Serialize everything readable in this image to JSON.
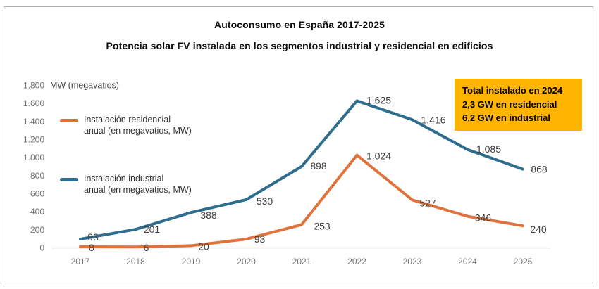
{
  "header": {
    "title1": "Autoconsumo en España 2017-2025",
    "title2": "Potencia solar FV instalada en los segmentos industrial y residencial en edificios"
  },
  "legend": {
    "residential": {
      "line1": "Instalación residencial",
      "line2": "anual (en megavatios, MW)",
      "color": "#e0733c"
    },
    "industrial": {
      "line1": "Instalación industrial",
      "line2": "anual (en megavatios, MW)",
      "color": "#2e6d8e"
    }
  },
  "callout": {
    "line1": "Total instalado en 2024",
    "line2": "2,3 GW en residencial",
    "line3": "6,2 GW en industrial",
    "bg_color": "#ffb400"
  },
  "chart_data": {
    "type": "line",
    "title": "Autoconsumo en España 2017-2025",
    "subtitle": "Potencia solar FV instalada en los segmentos industrial y residencial en edificios",
    "categories": [
      "2017",
      "2018",
      "2019",
      "2020",
      "2021",
      "2022",
      "2023",
      "2024",
      "2025"
    ],
    "series": [
      {
        "name": "Instalación residencial anual (en megavatios, MW)",
        "values": [
          8,
          6,
          20,
          93,
          253,
          1024,
          527,
          346,
          240
        ],
        "labels": [
          "8",
          "6",
          "20",
          "93",
          "253",
          "1.024",
          "527",
          "346",
          "240"
        ],
        "color": "#e0733c",
        "label_offsets": [
          [
            16,
            1
          ],
          [
            15,
            1
          ],
          [
            18,
            1
          ],
          [
            19,
            0
          ],
          [
            29,
            2
          ],
          [
            31,
            1
          ],
          [
            22,
            4
          ],
          [
            22,
            2
          ],
          [
            22,
            5
          ]
        ]
      },
      {
        "name": "Instalación industrial anual (en megavatios, MW)",
        "values": [
          93,
          201,
          388,
          530,
          898,
          1625,
          1416,
          1085,
          868
        ],
        "labels": [
          "93",
          "201",
          "388",
          "530",
          "898",
          "1.625",
          "1.416",
          "1.085",
          "868"
        ],
        "color": "#2e6d8e",
        "label_offsets": [
          [
            18,
            -3
          ],
          [
            23,
            0
          ],
          [
            25,
            4
          ],
          [
            26,
            2
          ],
          [
            24,
            -1
          ],
          [
            31,
            -1
          ],
          [
            30,
            0
          ],
          [
            30,
            -1
          ],
          [
            23,
            0
          ]
        ]
      }
    ],
    "ylabel": "MW (megavatios)",
    "ylim": [
      0,
      1800
    ],
    "yticks": [
      "0",
      "200",
      "400",
      "600",
      "800",
      "1.000",
      "1.200",
      "1.400",
      "1.600",
      "1.800"
    ],
    "grid": false,
    "legend_position": "inside-left",
    "axis_color": "#d9d9d9",
    "tick_color": "#737373",
    "data_label_color": "#3f3f3f"
  }
}
